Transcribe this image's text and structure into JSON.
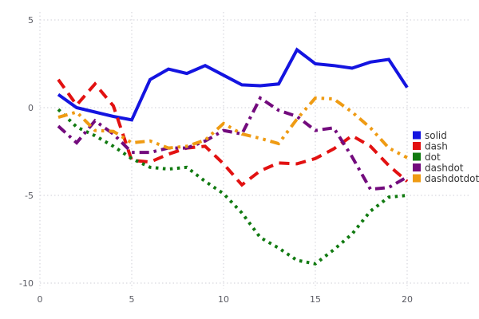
{
  "chart_data": {
    "type": "line",
    "title": "",
    "xlabel": "",
    "ylabel": "",
    "xlim": [
      0,
      21
    ],
    "ylim": [
      -10.5,
      5.5
    ],
    "x_ticks": [
      0,
      5,
      10,
      15,
      20
    ],
    "y_ticks": [
      5,
      0,
      -5,
      -10
    ],
    "grid": "dotted",
    "legend_position": "right",
    "x": [
      1,
      2,
      3,
      4,
      5,
      6,
      7,
      8,
      9,
      10,
      11,
      12,
      13,
      14,
      15,
      16,
      17,
      18,
      19,
      20
    ],
    "series": [
      {
        "name": "solid",
        "color": "#1414e0",
        "dash": "solid",
        "values": [
          0.75,
          0.0,
          -0.25,
          -0.5,
          -0.7,
          1.6,
          2.2,
          1.95,
          2.4,
          1.85,
          1.3,
          1.25,
          1.35,
          3.3,
          2.5,
          2.4,
          2.25,
          2.6,
          2.75,
          1.15
        ]
      },
      {
        "name": "dash",
        "color": "#e21111",
        "dash": "dash",
        "values": [
          1.6,
          0.15,
          1.35,
          0.1,
          -3.0,
          -3.1,
          -2.65,
          -2.3,
          -2.2,
          -3.2,
          -4.4,
          -3.6,
          -3.15,
          -3.2,
          -2.9,
          -2.35,
          -1.6,
          -2.2,
          -3.3,
          -4.2
        ]
      },
      {
        "name": "dot",
        "color": "#117a11",
        "dash": "dot",
        "values": [
          -0.1,
          -1.1,
          -1.6,
          -2.2,
          -2.9,
          -3.4,
          -3.5,
          -3.4,
          -4.2,
          -4.9,
          -6.0,
          -7.4,
          -8.0,
          -8.7,
          -8.9,
          -8.1,
          -7.2,
          -5.9,
          -5.1,
          -5.0
        ]
      },
      {
        "name": "dashdot",
        "color": "#730b7d",
        "dash": "dashdot",
        "values": [
          -1.05,
          -2.0,
          -0.75,
          -1.5,
          -2.55,
          -2.55,
          -2.3,
          -2.3,
          -1.9,
          -1.3,
          -1.5,
          0.55,
          -0.15,
          -0.5,
          -1.3,
          -1.15,
          -2.8,
          -4.65,
          -4.55,
          -3.95
        ]
      },
      {
        "name": "dashdotdot",
        "color": "#ef9b13",
        "dash": "dashdotdot",
        "values": [
          -0.55,
          -0.25,
          -1.3,
          -1.35,
          -2.0,
          -1.9,
          -2.3,
          -2.2,
          -1.85,
          -0.9,
          -1.5,
          -1.75,
          -2.05,
          -0.65,
          0.55,
          0.5,
          -0.25,
          -1.15,
          -2.3,
          -2.85
        ]
      }
    ],
    "legend": {
      "entries": [
        {
          "label": "solid",
          "color": "#1414e0"
        },
        {
          "label": "dash",
          "color": "#e21111"
        },
        {
          "label": "dot",
          "color": "#117a11"
        },
        {
          "label": "dashdot",
          "color": "#730b7d"
        },
        {
          "label": "dashdotdot",
          "color": "#ef9b13"
        }
      ]
    }
  }
}
